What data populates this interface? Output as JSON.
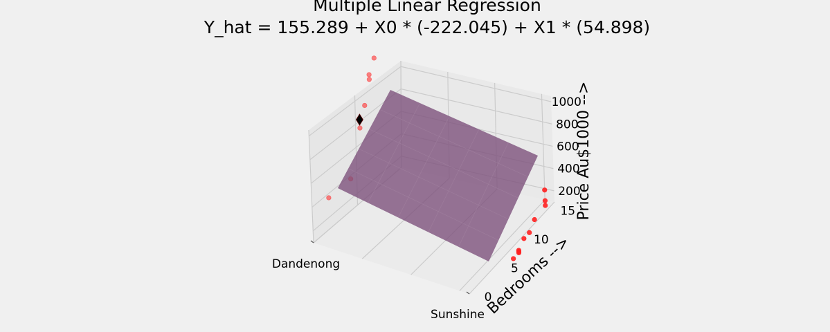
{
  "chart_data": {
    "type": "scatter",
    "title": "Multiple Linear Regression",
    "subtitle": "Y_hat = 155.289 + X0 * (-222.045) + X1 * (54.898)",
    "xlabel": "",
    "ylabel": "Bedrooms -->",
    "zlabel": "Price Au$1000 -->",
    "x_categories": [
      "Dandenong",
      "Sunshine"
    ],
    "y_ticks": [
      "0",
      "5",
      "10",
      "15"
    ],
    "z_ticks": [
      "200",
      "400",
      "600",
      "800",
      "1000"
    ],
    "ylim": [
      0,
      16
    ],
    "zlim": [
      100,
      1050
    ],
    "regression": {
      "intercept": 155.289,
      "coef_x0": -222.045,
      "coef_x1": 54.898
    },
    "series": [
      {
        "marker": "circle",
        "color": "#ff2020",
        "points": [
          {
            "x": 0,
            "y": 12,
            "z": 1180
          },
          {
            "x": 0,
            "y": 11,
            "z": 1080
          },
          {
            "x": 0,
            "y": 11,
            "z": 1040
          },
          {
            "x": 0,
            "y": 10,
            "z": 860
          },
          {
            "x": 0,
            "y": 9,
            "z": 780
          },
          {
            "x": 0,
            "y": 9,
            "z": 710
          },
          {
            "x": 0,
            "y": 3,
            "z": 360
          },
          {
            "x": 0,
            "y": 7,
            "z": 360
          },
          {
            "x": 1,
            "y": 14,
            "z": 420
          },
          {
            "x": 1,
            "y": 14,
            "z": 330
          },
          {
            "x": 1,
            "y": 14,
            "z": 290
          },
          {
            "x": 1,
            "y": 12,
            "z": 250
          },
          {
            "x": 1,
            "y": 11,
            "z": 180
          },
          {
            "x": 1,
            "y": 10,
            "z": 170
          },
          {
            "x": 1,
            "y": 9,
            "z": 110
          },
          {
            "x": 1,
            "y": 9,
            "z": 100
          },
          {
            "x": 1,
            "y": 9,
            "z": 90
          },
          {
            "x": 1,
            "y": 8,
            "z": 80
          }
        ]
      },
      {
        "marker": "diamond",
        "color": "#000000",
        "points": [
          {
            "x": 0,
            "y": 9,
            "z": 780
          }
        ]
      }
    ],
    "grid": true,
    "surface_color": "#7b4e7a"
  }
}
